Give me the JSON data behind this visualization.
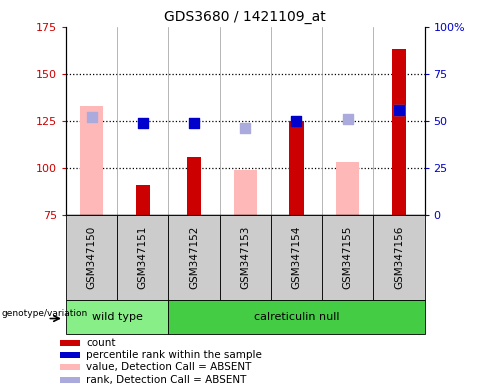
{
  "title": "GDS3680 / 1421109_at",
  "samples": [
    "GSM347150",
    "GSM347151",
    "GSM347152",
    "GSM347153",
    "GSM347154",
    "GSM347155",
    "GSM347156"
  ],
  "ylim_left": [
    75,
    175
  ],
  "ylim_right": [
    0,
    100
  ],
  "yticks_left": [
    75,
    100,
    125,
    150,
    175
  ],
  "yticks_right": [
    0,
    25,
    50,
    75,
    100
  ],
  "ytick_labels_right": [
    "0",
    "25",
    "50",
    "75",
    "100%"
  ],
  "count_values": [
    null,
    91,
    106,
    null,
    125,
    null,
    163
  ],
  "count_color": "#cc0000",
  "value_absent_values": [
    133,
    null,
    null,
    99,
    null,
    103,
    null
  ],
  "value_absent_color": "#ffb8b8",
  "percentile_rank_values": [
    null,
    124,
    124,
    null,
    125,
    null,
    131
  ],
  "percentile_rank_color": "#0000cc",
  "rank_absent_values": [
    127,
    null,
    null,
    121,
    null,
    126,
    131
  ],
  "rank_absent_color": "#aaaadd",
  "groups": [
    {
      "label": "wild type",
      "start": 0,
      "end": 2,
      "color": "#88ee88"
    },
    {
      "label": "calreticulin null",
      "start": 2,
      "end": 7,
      "color": "#44cc44"
    }
  ],
  "count_bar_width": 0.28,
  "absent_bar_width": 0.45,
  "dot_size": 45,
  "left_tick_color": "#cc0000",
  "right_tick_color": "#0000cc",
  "bg_color": "#ffffff",
  "sample_bg_color": "#cccccc",
  "legend_items": [
    {
      "label": "count",
      "color": "#cc0000"
    },
    {
      "label": "percentile rank within the sample",
      "color": "#0000cc"
    },
    {
      "label": "value, Detection Call = ABSENT",
      "color": "#ffb8b8"
    },
    {
      "label": "rank, Detection Call = ABSENT",
      "color": "#aaaadd"
    }
  ]
}
